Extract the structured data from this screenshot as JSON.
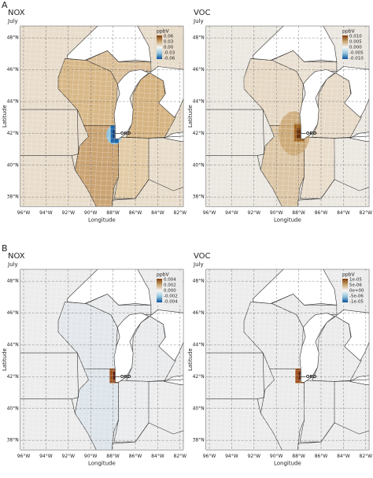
{
  "figure": {
    "xlabel": "Longitude",
    "ylabel": "Latitude",
    "xticks": [
      "96°W",
      "94°W",
      "92°W",
      "90°W",
      "88°W",
      "86°W",
      "84°W",
      "82°W"
    ],
    "yticks": [
      "48°N",
      "46°N",
      "44°N",
      "42°N",
      "40°N",
      "38°N"
    ],
    "sections": [
      {
        "label": "A",
        "panels": [
          {
            "title": "NOX",
            "subtitle": "July",
            "legend_title": "ppbV",
            "legend_labels": [
              "0.06",
              "0.03",
              "0.00",
              "-0.03",
              "-0.06"
            ],
            "annotation": "ORD"
          },
          {
            "title": "VOC",
            "subtitle": "July",
            "legend_title": "ppbV",
            "legend_labels": [
              "0.010",
              "0.005",
              "0.000",
              "-0.005",
              "-0.010"
            ],
            "annotation": "ORD"
          }
        ]
      },
      {
        "label": "B",
        "panels": [
          {
            "title": "NOX",
            "subtitle": "July",
            "legend_title": "ppbV",
            "legend_labels": [
              "0.004",
              "0.002",
              "0.000",
              "-0.002",
              "-0.004"
            ],
            "annotation": "ORD"
          },
          {
            "title": "VOC",
            "subtitle": "July",
            "legend_title": "ppbV",
            "legend_labels": [
              "1e-05",
              "5e-06",
              "0e+00",
              "-5e-06",
              "-1e-05"
            ],
            "annotation": "ORD"
          }
        ]
      }
    ]
  }
}
